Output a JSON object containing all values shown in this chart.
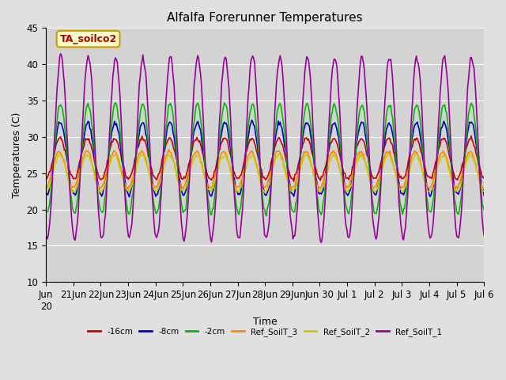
{
  "title": "Alfalfa Forerunner Temperatures",
  "xlabel": "Time",
  "ylabel": "Temperatures (C)",
  "ylim": [
    10,
    45
  ],
  "background_color": "#e0e0e0",
  "plot_bg_color": "#d3d3d3",
  "annotation_text": "TA_soilco2",
  "annotation_color": "#aa0000",
  "annotation_bg": "#ffffcc",
  "annotation_border": "#cc9900",
  "x_tick_labels": [
    "Jun",
    "21Jun",
    "22Jun",
    "23Jun",
    "24Jun",
    "25Jun",
    "26Jun",
    "27Jun",
    "28Jun",
    "29Jun",
    "30 Jul 1",
    "Jul 2",
    "Jul 3",
    "Jul 4",
    "Jul 5",
    "Jul 6"
  ],
  "series_colors": [
    "#cc0000",
    "#0000cc",
    "#00bb00",
    "#ff8800",
    "#cccc00",
    "#990099"
  ],
  "series_labels": [
    "-16cm",
    "-8cm",
    "-2cm",
    "Ref_SoilT_3",
    "Ref_SoilT_2",
    "Ref_SoilT_1"
  ],
  "grid_color": "#ffffff",
  "num_points": 480
}
